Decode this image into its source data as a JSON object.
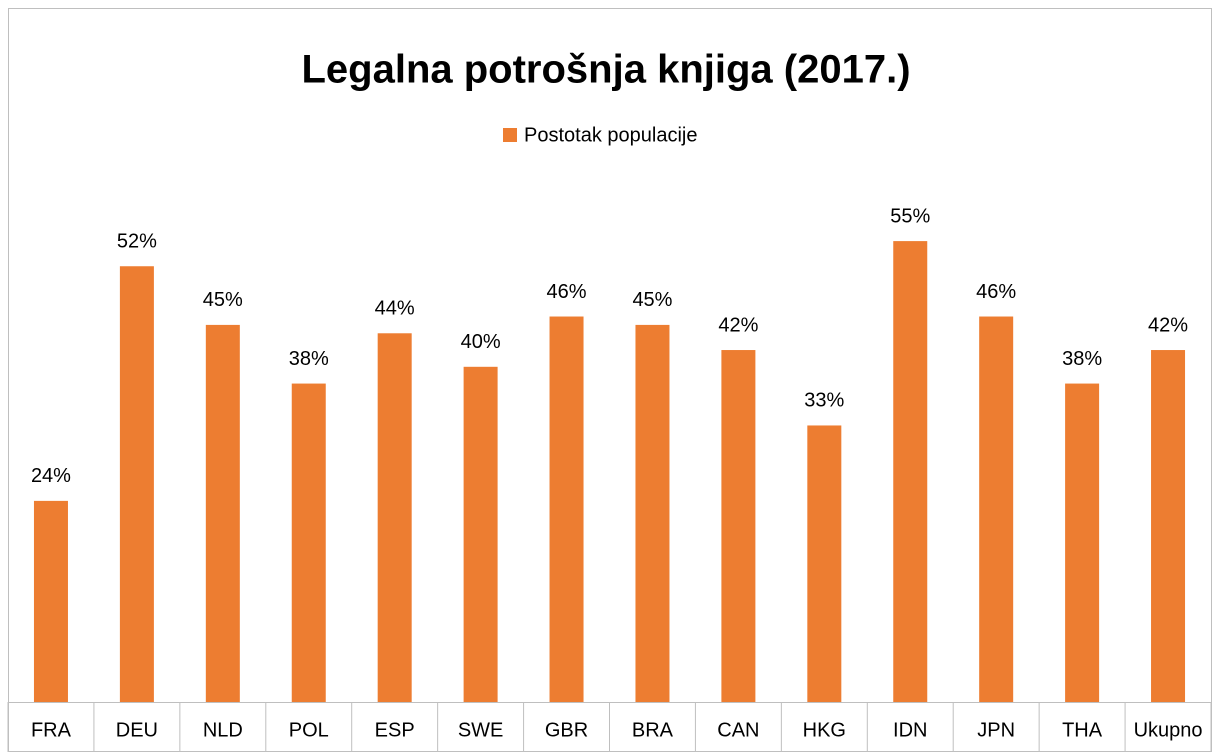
{
  "chart_data": {
    "type": "bar",
    "title": "Legalna potrošnja knjiga (2017.)",
    "categories": [
      "FRA",
      "DEU",
      "NLD",
      "POL",
      "ESP",
      "SWE",
      "GBR",
      "BRA",
      "CAN",
      "HKG",
      "IDN",
      "JPN",
      "THA",
      "Ukupno"
    ],
    "series": [
      {
        "name": "Postotak populacije",
        "color": "#ed7d31",
        "values": [
          24,
          52,
          45,
          38,
          44,
          40,
          46,
          45,
          42,
          33,
          55,
          46,
          38,
          42
        ],
        "value_labels": [
          "24%",
          "52%",
          "45%",
          "38%",
          "44%",
          "40%",
          "46%",
          "45%",
          "42%",
          "33%",
          "55%",
          "46%",
          "38%",
          "42%"
        ]
      }
    ],
    "legend": "top"
  }
}
